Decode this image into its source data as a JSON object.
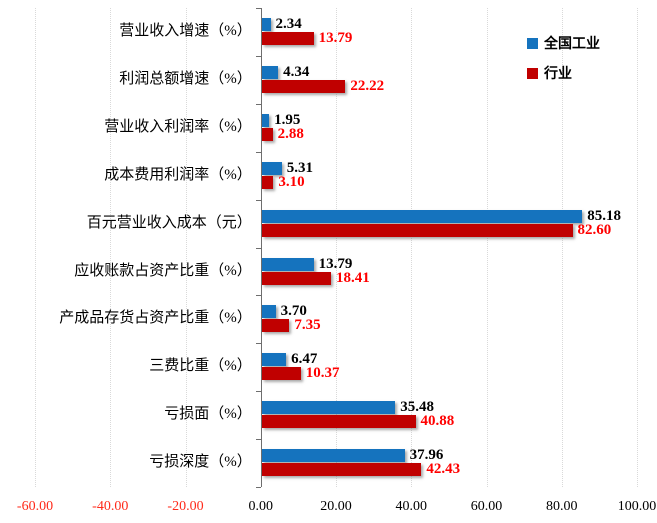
{
  "chart_data": {
    "type": "bar",
    "orientation": "horizontal",
    "title": "",
    "xlabel": "",
    "ylabel": "",
    "xlim": [
      -60,
      100
    ],
    "grid": true,
    "legend_position": "top-right",
    "categories": [
      "营业收入增速（%）",
      "利润总额增速（%）",
      "营业收入利润率（%）",
      "成本费用利润率（%）",
      "百元营业收入成本（元）",
      "应收账款占资产比重（%）",
      "产成品存货占资产比重（%）",
      "三费比重（%）",
      "亏损面（%）",
      "亏损深度（%）"
    ],
    "series": [
      {
        "name": "全国工业",
        "color": "#1573BE",
        "label_color": "#000000",
        "values": [
          2.34,
          4.34,
          1.95,
          5.31,
          85.18,
          13.79,
          3.7,
          6.47,
          35.48,
          37.96
        ],
        "labels": [
          "2.34",
          "4.34",
          "1.95",
          "5.31",
          "85.18",
          "13.79",
          "3.70",
          "6.47",
          "35.48",
          "37.96"
        ]
      },
      {
        "name": "行业",
        "color": "#C00000",
        "label_color": "#FF0000",
        "values": [
          13.79,
          22.22,
          2.88,
          3.1,
          82.6,
          18.41,
          7.35,
          10.37,
          40.88,
          42.43
        ],
        "labels": [
          "13.79",
          "22.22",
          "2.88",
          "3.10",
          "82.60",
          "18.41",
          "7.35",
          "10.37",
          "40.88",
          "42.43"
        ]
      }
    ],
    "x_ticks": [
      {
        "label": "-60.00",
        "value": -60
      },
      {
        "label": "-40.00",
        "value": -40
      },
      {
        "label": "-20.00",
        "value": -20
      },
      {
        "label": "0.00",
        "value": 0
      },
      {
        "label": "20.00",
        "value": 20
      },
      {
        "label": "40.00",
        "value": 40
      },
      {
        "label": "60.00",
        "value": 60
      },
      {
        "label": "80.00",
        "value": 80
      },
      {
        "label": "100.00",
        "value": 100
      }
    ],
    "colors": {
      "background": "#FFFFFF",
      "gridline": "#D9D9D9",
      "axis_line": "#6E6E6E",
      "tick_label_positive": "#000000",
      "tick_label_negative": "#FF2A1A"
    }
  }
}
